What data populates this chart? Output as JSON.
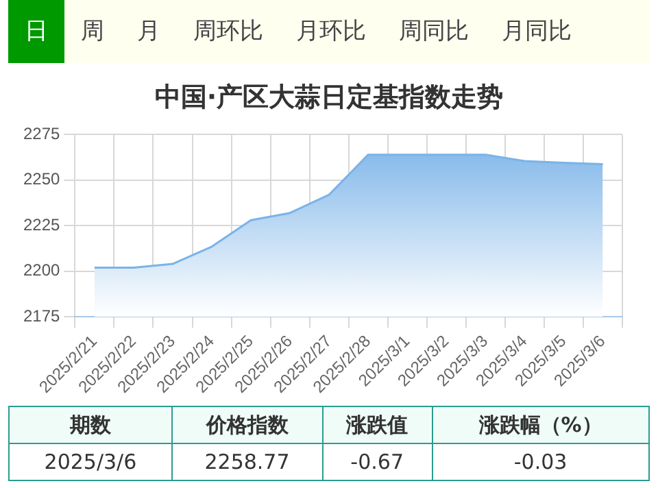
{
  "chart_data": {
    "type": "area",
    "title": "中国·产区大蒜日定基指数走势",
    "categories": [
      "2025/2/21",
      "2025/2/22",
      "2025/2/23",
      "2025/2/24",
      "2025/2/25",
      "2025/2/26",
      "2025/2/27",
      "2025/2/28",
      "2025/3/1",
      "2025/3/2",
      "2025/3/3",
      "2025/3/4",
      "2025/3/5",
      "2025/3/6"
    ],
    "values": [
      2202,
      2202,
      2204,
      2213.5,
      2228,
      2232,
      2242,
      2264,
      2264,
      2264,
      2264,
      2260.5,
      2259.5,
      2258.77
    ],
    "color": "#7ab3e8",
    "ylim": [
      2175,
      2275
    ],
    "yticks": [
      2175,
      2200,
      2225,
      2250,
      2275
    ],
    "grid": true,
    "legend": false,
    "marker": "none",
    "annotations": [
      "日",
      "周",
      "月",
      "周环比",
      "月环比",
      "周同比",
      "月同比",
      "期数",
      "价格指数",
      "涨跌值",
      "涨跌幅（%）",
      "2025/3/6",
      "2258.77",
      "-0.67",
      "-0.03"
    ]
  }
}
